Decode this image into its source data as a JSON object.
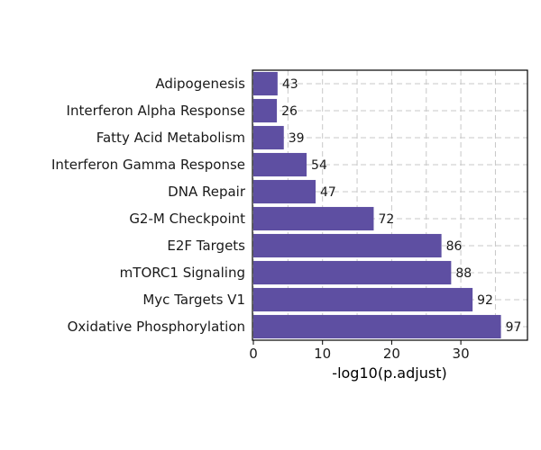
{
  "chart_data": {
    "type": "bar",
    "orientation": "horizontal",
    "categories": [
      "Adipogenesis",
      "Interferon Alpha Response",
      "Fatty Acid Metabolism",
      "Interferon Gamma Response",
      "DNA Repair",
      "G2-M Checkpoint",
      "E2F Targets",
      "mTORC1 Signaling",
      "Myc Targets V1",
      "Oxidative Phosphorylation"
    ],
    "values": [
      3.5,
      3.4,
      4.4,
      7.7,
      9.0,
      17.4,
      27.2,
      28.6,
      31.7,
      35.8
    ],
    "data_labels": [
      "43",
      "26",
      "39",
      "54",
      "47",
      "72",
      "86",
      "88",
      "92",
      "97"
    ],
    "xlabel": "-log10(p.adjust)",
    "ylabel": "",
    "title": "",
    "xlim": [
      0,
      40
    ],
    "xticks": [
      0,
      10,
      20,
      30
    ],
    "xtick_labels": [
      "0",
      "10",
      "20",
      "30"
    ],
    "grid": true,
    "bar_color": "#5e4fa2"
  }
}
